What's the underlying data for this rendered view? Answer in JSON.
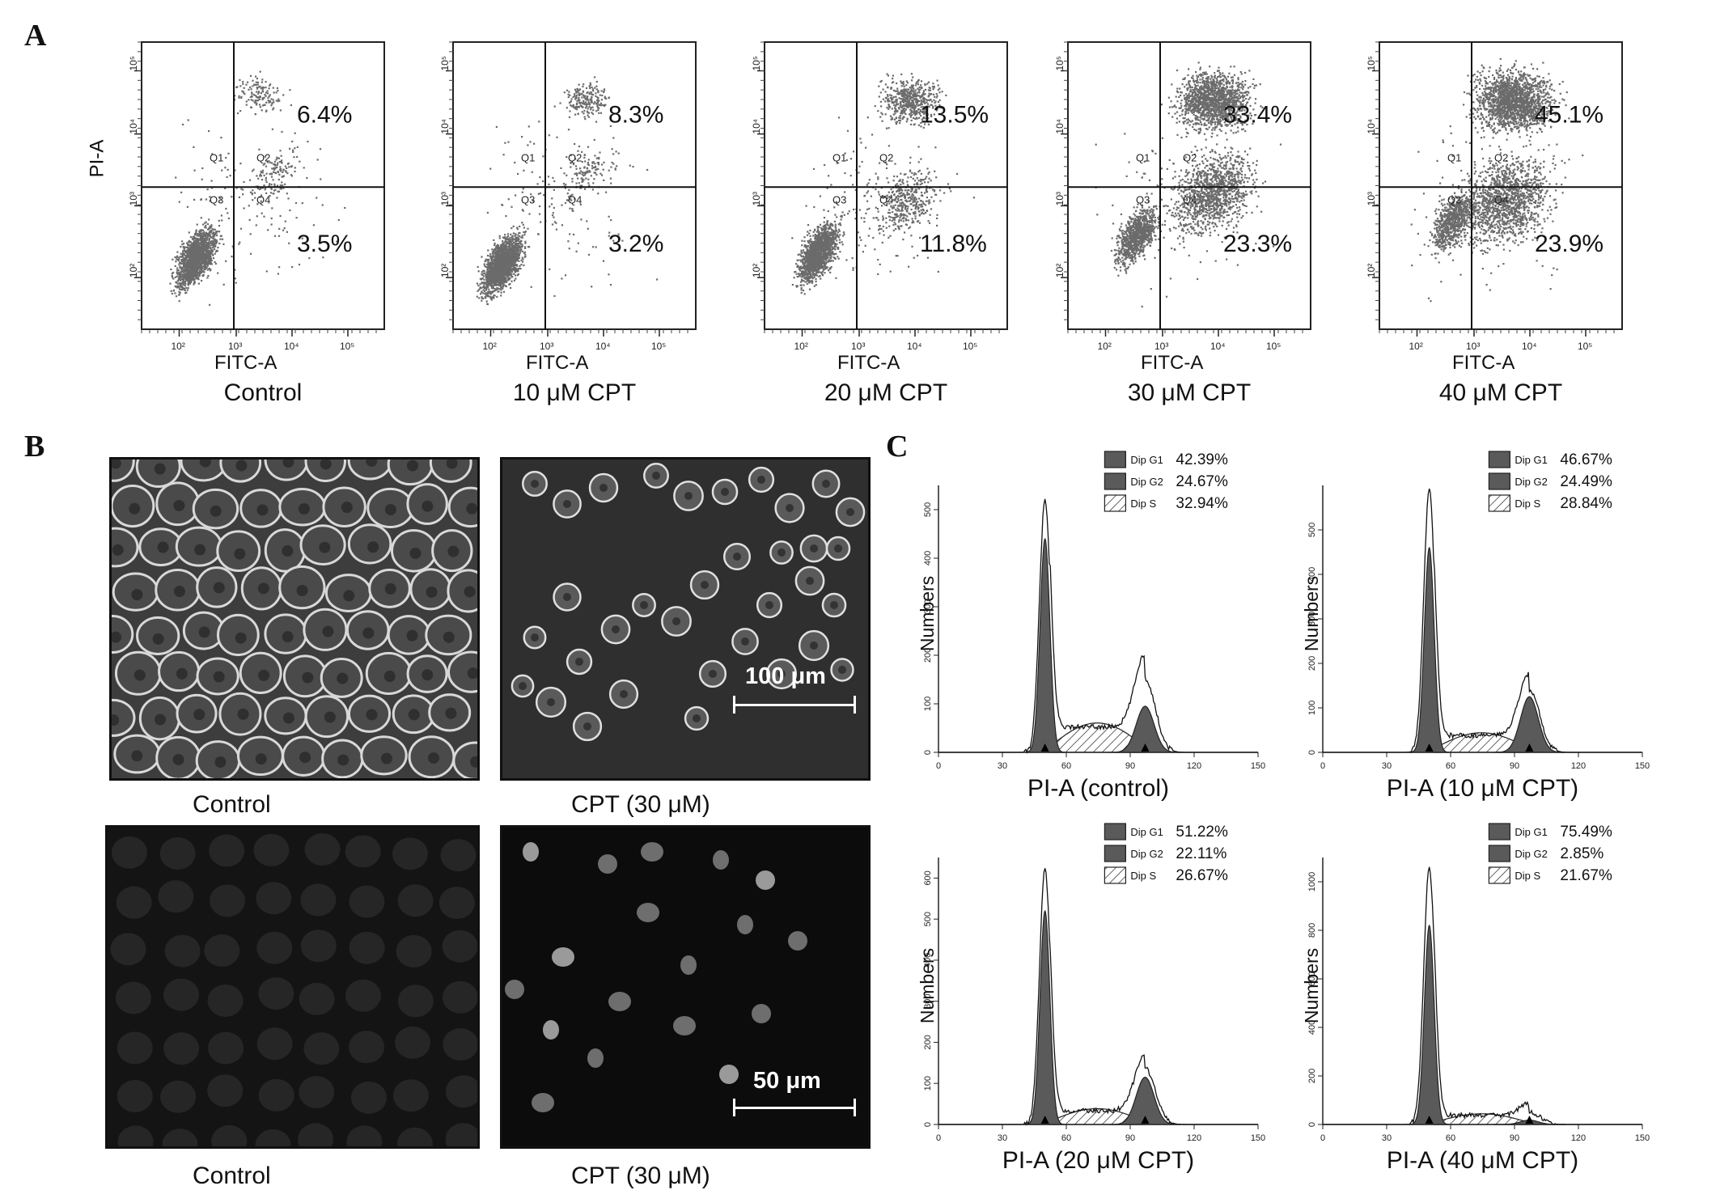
{
  "panel_letters": {
    "a": "A",
    "b": "B",
    "c": "C"
  },
  "panel_a": {
    "x_axis_label": "FITC-A",
    "y_axis_label": "PI-A",
    "quadrant_names": [
      "Q1",
      "Q2",
      "Q3",
      "Q4"
    ],
    "plots": [
      {
        "condition": "Control",
        "upper_right_pct": "6.4%",
        "lower_right_pct": "3.5%"
      },
      {
        "condition": "10 μM CPT",
        "upper_right_pct": "8.3%",
        "lower_right_pct": "3.2%"
      },
      {
        "condition": "20 μM CPT",
        "upper_right_pct": "13.5%",
        "lower_right_pct": "11.8%"
      },
      {
        "condition": "30 μM CPT",
        "upper_right_pct": "33.4%",
        "lower_right_pct": "23.3%"
      },
      {
        "condition": "40 μM CPT",
        "upper_right_pct": "45.1%",
        "lower_right_pct": "23.9%"
      }
    ],
    "dot_color": "#6b6b6b"
  },
  "panel_b": {
    "images": [
      {
        "label": "Control",
        "kind": "phase-contrast",
        "scale_bar": ""
      },
      {
        "label": "CPT (30 μM)",
        "kind": "phase-contrast",
        "scale_bar": "100 μm"
      },
      {
        "label": "Control",
        "kind": "fluorescence",
        "scale_bar": ""
      },
      {
        "label": "CPT (30 μM)",
        "kind": "fluorescence",
        "scale_bar": "50 μm"
      }
    ]
  },
  "chart_data": [
    {
      "type": "area",
      "title": "",
      "xlabel": "PI-A (control)",
      "ylabel": "Numbers",
      "xlim": [
        0,
        150
      ],
      "ylim": [
        0,
        550
      ],
      "x_ticks": [
        0,
        30,
        60,
        90,
        120,
        150
      ],
      "y_ticks": [
        0,
        100,
        200,
        300,
        400,
        500
      ],
      "g1_peak": {
        "x": 50,
        "height": 440,
        "outline_height": 520
      },
      "g2_peak": {
        "x": 97,
        "height": 95,
        "outline_height": 178
      },
      "s_level": 55,
      "legend": [
        {
          "name": "Dip G1",
          "value": "42.39%"
        },
        {
          "name": "Dip G2",
          "value": "24.67%"
        },
        {
          "name": "Dip S",
          "value": "32.94%"
        }
      ]
    },
    {
      "type": "area",
      "title": "",
      "xlabel": "PI-A (10 μM CPT)",
      "ylabel": "Numbers",
      "xlim": [
        0,
        150
      ],
      "ylim": [
        0,
        600
      ],
      "x_ticks": [
        0,
        30,
        60,
        90,
        120,
        150
      ],
      "y_ticks": [
        0,
        100,
        200,
        300,
        400,
        500
      ],
      "g1_peak": {
        "x": 50,
        "height": 460,
        "outline_height": 590
      },
      "g2_peak": {
        "x": 97,
        "height": 125,
        "outline_height": 165
      },
      "s_level": 40,
      "legend": [
        {
          "name": "Dip G1",
          "value": "46.67%"
        },
        {
          "name": "Dip G2",
          "value": "24.49%"
        },
        {
          "name": "Dip S",
          "value": "28.84%"
        }
      ]
    },
    {
      "type": "area",
      "title": "",
      "xlabel": "PI-A (20 μM CPT)",
      "ylabel": "Numbers",
      "xlim": [
        0,
        150
      ],
      "ylim": [
        0,
        650
      ],
      "x_ticks": [
        0,
        30,
        60,
        90,
        120,
        150
      ],
      "y_ticks": [
        0,
        100,
        200,
        300,
        400,
        500,
        600
      ],
      "g1_peak": {
        "x": 50,
        "height": 520,
        "outline_height": 620
      },
      "g2_peak": {
        "x": 97,
        "height": 115,
        "outline_height": 160
      },
      "s_level": 35,
      "legend": [
        {
          "name": "Dip G1",
          "value": "51.22%"
        },
        {
          "name": "Dip G2",
          "value": "22.11%"
        },
        {
          "name": "Dip S",
          "value": "26.67%"
        }
      ]
    },
    {
      "type": "area",
      "title": "",
      "xlabel": "PI-A (40 μM CPT)",
      "ylabel": "Numbers",
      "xlim": [
        0,
        150
      ],
      "ylim": [
        0,
        1100
      ],
      "x_ticks": [
        0,
        30,
        60,
        90,
        120,
        150
      ],
      "y_ticks": [
        0,
        200,
        400,
        600,
        800,
        1000
      ],
      "g1_peak": {
        "x": 50,
        "height": 820,
        "outline_height": 1060
      },
      "g2_peak": {
        "x": 97,
        "height": 18,
        "outline_height": 60
      },
      "s_level": 40,
      "legend": [
        {
          "name": "Dip G1",
          "value": "75.49%"
        },
        {
          "name": "Dip G2",
          "value": "2.85%"
        },
        {
          "name": "Dip S",
          "value": "21.67%"
        }
      ]
    }
  ]
}
